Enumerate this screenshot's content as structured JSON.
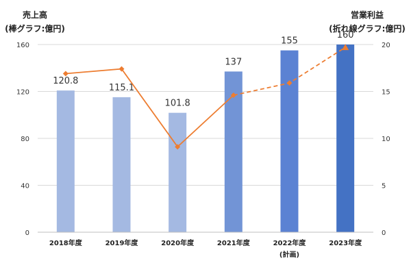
{
  "chart_data": {
    "type": "bar",
    "categories": [
      "2018年度",
      "2019年度",
      "2020年度",
      "2021年度",
      "2022年度",
      "2023年度"
    ],
    "category_sublabels": [
      "",
      "",
      "",
      "",
      "(計画)",
      ""
    ],
    "left_axis": {
      "title": "売上高",
      "subtitle": "(棒グラフ:億円)",
      "ticks": [
        0,
        40,
        80,
        120,
        160
      ],
      "ylim": [
        0,
        160
      ]
    },
    "right_axis": {
      "title": "営業利益",
      "subtitle": "(折れ線グラフ:億円)",
      "ticks": [
        0,
        5,
        10,
        15,
        20
      ],
      "ylim": [
        0,
        20
      ]
    },
    "series": [
      {
        "type": "bar",
        "axis": "left",
        "values": [
          120.8,
          115.1,
          101.8,
          137,
          155,
          160
        ],
        "labels": [
          "120.8",
          "115.1",
          "101.8",
          "137",
          "155",
          "160"
        ],
        "colors": [
          "#a4b9e2",
          "#a4b9e2",
          "#a4b9e2",
          "#7294d6",
          "#5b82d3",
          "#4472c4"
        ]
      },
      {
        "type": "line",
        "axis": "right",
        "values": [
          16.9,
          17.4,
          9.1,
          14.6,
          15.9,
          19.7
        ],
        "color": "#ed7d31",
        "solid_until_index": 3,
        "dashed_from_index": 3,
        "markers": [
          "diamond",
          "diamond",
          "diamond",
          "diamond",
          "diamond",
          "triangle"
        ]
      }
    ],
    "grid": true,
    "legend": "none"
  }
}
